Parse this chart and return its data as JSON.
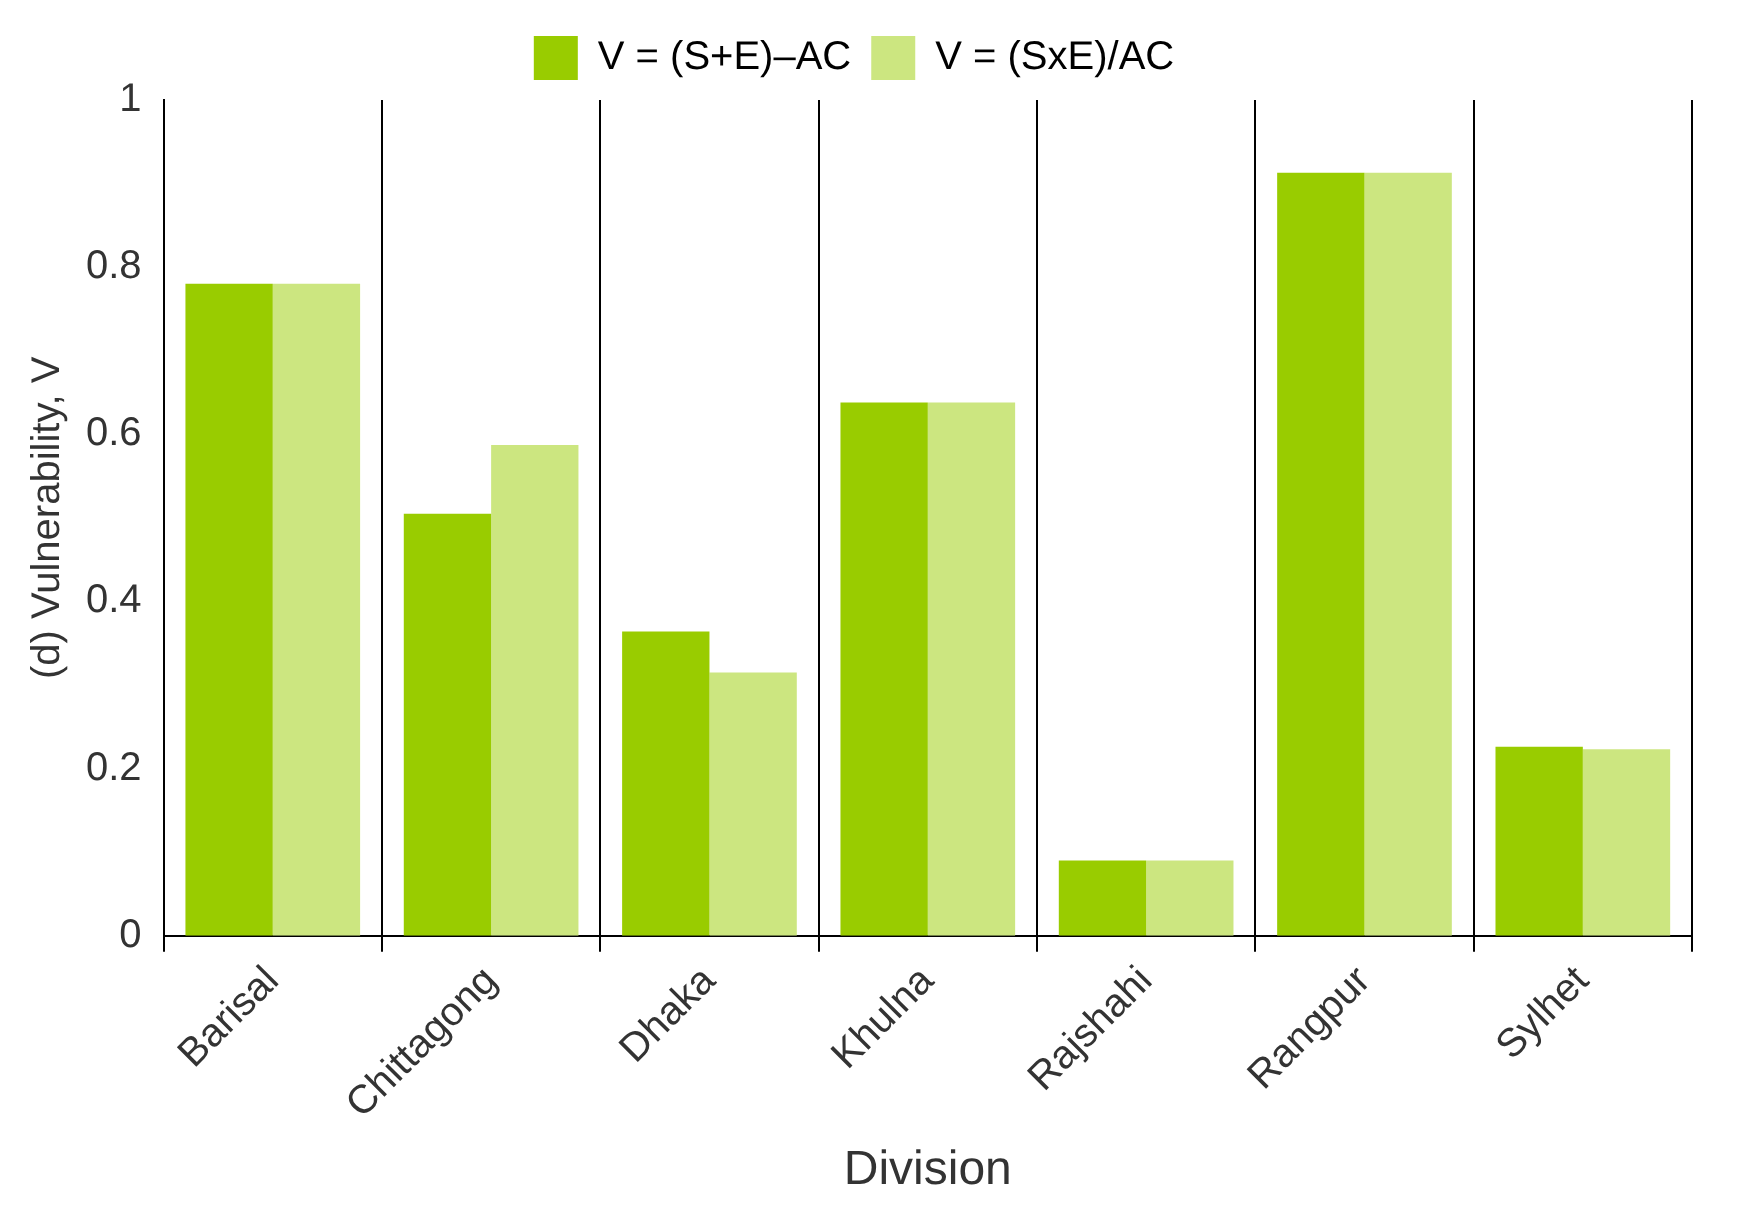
{
  "chart_data": {
    "type": "bar",
    "xlabel": "Division",
    "ylabel": "(d) Vulnerability, V",
    "categories": [
      "Barisal",
      "Chittagong",
      "Dhaka",
      "Khulna",
      "Rajshahi",
      "Rangpur",
      "Sylhet"
    ],
    "series": [
      {
        "name": "V = (S+E)–AC",
        "color": "#99cc00",
        "values": [
          0.78,
          0.505,
          0.364,
          0.638,
          0.09,
          0.913,
          0.226
        ]
      },
      {
        "name": "V = (SxE)/AC",
        "color": "#cce680",
        "values": [
          0.78,
          0.587,
          0.315,
          0.638,
          0.09,
          0.913,
          0.223
        ]
      }
    ],
    "ylim": [
      0,
      1
    ],
    "yticks": [
      0,
      0.2,
      0.4,
      0.6,
      0.8,
      1
    ],
    "grid": "x",
    "legend": "top"
  }
}
